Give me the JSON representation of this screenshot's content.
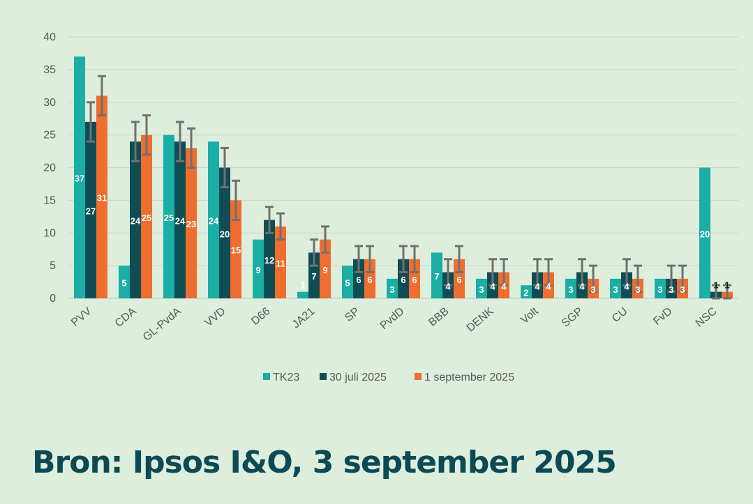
{
  "chart_data": {
    "type": "bar",
    "categories": [
      "PVV",
      "CDA",
      "GL-PvdA",
      "VVD",
      "D66",
      "JA21",
      "SP",
      "PvdD",
      "BBB",
      "DENK",
      "Volt",
      "SGP",
      "CU",
      "FvD",
      "NSC"
    ],
    "series": [
      {
        "name": "TK23",
        "color": "#1aaea5",
        "label_color": "#ffffff",
        "values": [
          37,
          5,
          25,
          24,
          9,
          1,
          5,
          3,
          7,
          3,
          2,
          3,
          3,
          3,
          20
        ]
      },
      {
        "name": "30 juli 2025",
        "color": "#0f4d55",
        "label_color": "#ffffff",
        "values": [
          27,
          24,
          24,
          20,
          12,
          7,
          6,
          6,
          4,
          4,
          4,
          4,
          4,
          3,
          1
        ],
        "error": [
          [
            24,
            30
          ],
          [
            21,
            27
          ],
          [
            21,
            27
          ],
          [
            17,
            23
          ],
          [
            10,
            14
          ],
          [
            5,
            9
          ],
          [
            4,
            8
          ],
          [
            4,
            8
          ],
          [
            2,
            6
          ],
          [
            2,
            6
          ],
          [
            2,
            6
          ],
          [
            2,
            6
          ],
          [
            2,
            6
          ],
          [
            1,
            5
          ],
          [
            0,
            2
          ]
        ]
      },
      {
        "name": "1 september 2025",
        "color": "#ef6d2e",
        "label_color": "#ffffff",
        "values": [
          31,
          25,
          23,
          15,
          11,
          9,
          6,
          6,
          6,
          4,
          4,
          3,
          3,
          3,
          1
        ],
        "error": [
          [
            28,
            34
          ],
          [
            22,
            28
          ],
          [
            20,
            26
          ],
          [
            12,
            18
          ],
          [
            9,
            13
          ],
          [
            7,
            11
          ],
          [
            4,
            8
          ],
          [
            4,
            8
          ],
          [
            4,
            8
          ],
          [
            2,
            6
          ],
          [
            2,
            6
          ],
          [
            1,
            5
          ],
          [
            1,
            5
          ],
          [
            1,
            5
          ],
          [
            0,
            2
          ]
        ]
      }
    ],
    "y_ticks": [
      0,
      5,
      10,
      15,
      20,
      25,
      30,
      35,
      40
    ],
    "ylim": [
      0,
      40
    ],
    "grid": true,
    "legend_position": "bottom-center",
    "error_bar_color": "#707070",
    "grid_color": "#c8d4c7",
    "text_color": "#595959"
  },
  "source": "Bron: Ipsos I&O, 3 september 2025"
}
